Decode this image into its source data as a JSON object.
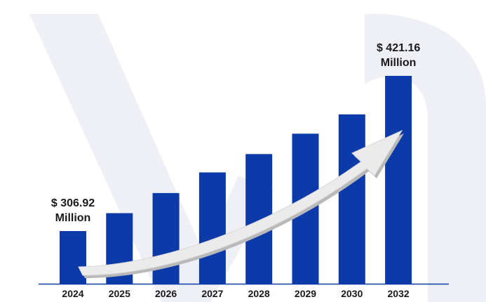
{
  "chart_data": {
    "type": "bar",
    "categories": [
      "2024",
      "2025",
      "2026",
      "2027",
      "2028",
      "2029",
      "2030",
      "2032"
    ],
    "values": [
      306.92,
      320.1,
      334.9,
      350.1,
      363.6,
      378.6,
      392.8,
      421.16
    ],
    "annotations": [
      {
        "category": "2024",
        "line1": "$ 306.92",
        "line2": "Million"
      },
      {
        "category": "2032",
        "line1": "$ 421.16",
        "line2": "Million"
      }
    ],
    "title": "",
    "xlabel": "",
    "ylabel": "",
    "trend_arrow": true,
    "grid": false,
    "colors": {
      "bar": "#0d3aa9",
      "axis": "#0d3aa9",
      "arrow_fill": "#ebebeb",
      "arrow_shade": "#b9b9b9",
      "watermark": "#eef0f6",
      "text": "#1a1a1a"
    }
  }
}
